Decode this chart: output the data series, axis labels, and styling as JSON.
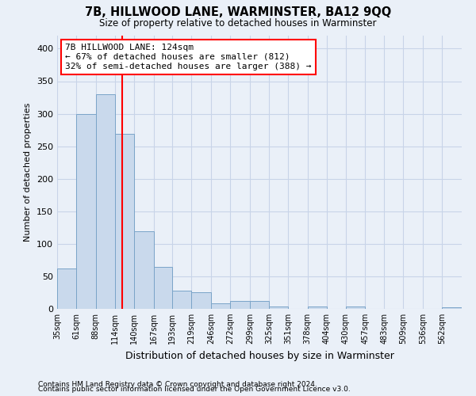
{
  "title": "7B, HILLWOOD LANE, WARMINSTER, BA12 9QQ",
  "subtitle": "Size of property relative to detached houses in Warminster",
  "xlabel": "Distribution of detached houses by size in Warminster",
  "ylabel": "Number of detached properties",
  "footnote1": "Contains HM Land Registry data © Crown copyright and database right 2024.",
  "footnote2": "Contains public sector information licensed under the Open Government Licence v3.0.",
  "bar_color": "#c9d9ec",
  "bar_edge_color": "#7aa4c8",
  "grid_color": "#c8d4e8",
  "background_color": "#eaf0f8",
  "vline_x": 124,
  "vline_color": "red",
  "annotation_text": "7B HILLWOOD LANE: 124sqm\n← 67% of detached houses are smaller (812)\n32% of semi-detached houses are larger (388) →",
  "annotation_box_color": "white",
  "annotation_box_edge": "red",
  "categories": [
    "35sqm",
    "61sqm",
    "88sqm",
    "114sqm",
    "140sqm",
    "167sqm",
    "193sqm",
    "219sqm",
    "246sqm",
    "272sqm",
    "299sqm",
    "325sqm",
    "351sqm",
    "378sqm",
    "404sqm",
    "430sqm",
    "457sqm",
    "483sqm",
    "509sqm",
    "536sqm",
    "562sqm"
  ],
  "bin_edges": [
    35,
    61,
    88,
    114,
    140,
    167,
    193,
    219,
    246,
    272,
    299,
    325,
    351,
    378,
    404,
    430,
    457,
    483,
    509,
    536,
    562,
    589
  ],
  "values": [
    62,
    300,
    330,
    269,
    119,
    65,
    28,
    25,
    8,
    12,
    12,
    4,
    0,
    4,
    0,
    4,
    0,
    0,
    0,
    0,
    2
  ],
  "ylim": [
    0,
    420
  ],
  "yticks": [
    0,
    50,
    100,
    150,
    200,
    250,
    300,
    350,
    400
  ]
}
